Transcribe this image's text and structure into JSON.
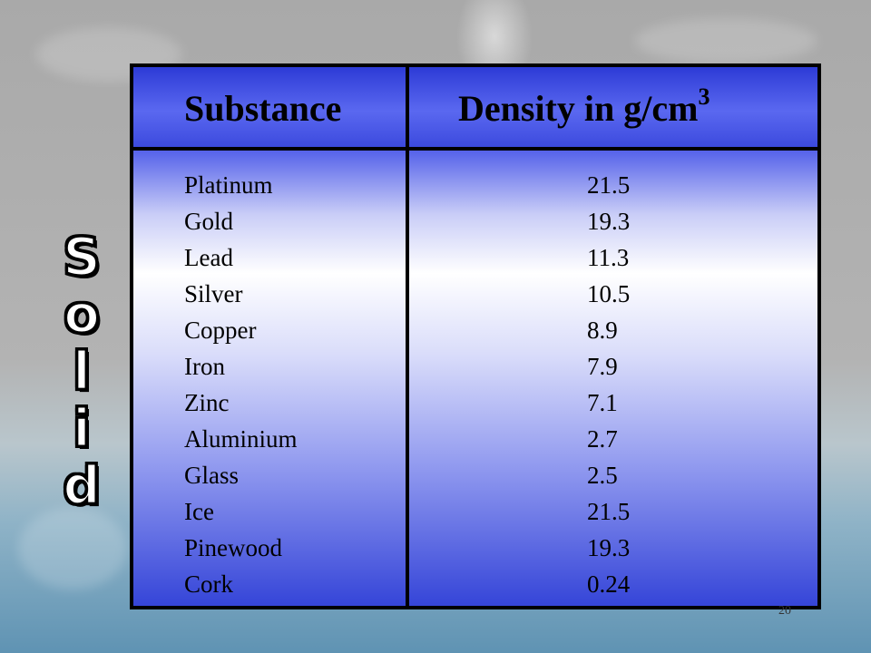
{
  "table": {
    "headers": {
      "substance": "Substance",
      "density": "Density in g/cm",
      "density_superscript": "3"
    },
    "rows": [
      {
        "substance": "Platinum",
        "density": "21.5"
      },
      {
        "substance": "Gold",
        "density": "19.3"
      },
      {
        "substance": "Lead",
        "density": "11.3"
      },
      {
        "substance": "Silver",
        "density": "10.5"
      },
      {
        "substance": "Copper",
        "density": "8.9"
      },
      {
        "substance": "Iron",
        "density": "7.9"
      },
      {
        "substance": "Zinc",
        "density": "7.1"
      },
      {
        "substance": "Aluminium",
        "density": "2.7"
      },
      {
        "substance": "Glass",
        "density": "2.5"
      },
      {
        "substance": "Ice",
        "density": "21.5"
      },
      {
        "substance": "Pinewood",
        "density": "19.3"
      },
      {
        "substance": "Cork",
        "density": "0.24"
      }
    ]
  },
  "side_label": {
    "letters": [
      "S",
      "o",
      "l",
      "i",
      "d"
    ]
  },
  "slide": {
    "page_number": "20"
  }
}
